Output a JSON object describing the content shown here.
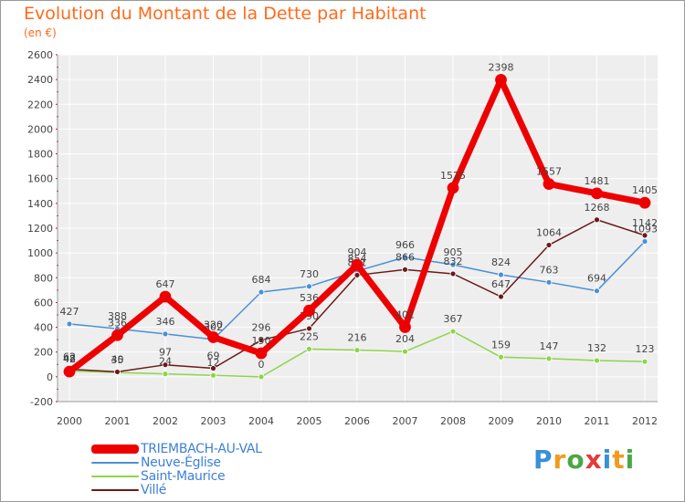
{
  "chart_data": {
    "type": "line",
    "title": "Evolution du Montant de la Dette par Habitant",
    "subtitle": "(en €)",
    "x": [
      "2000",
      "2001",
      "2002",
      "2003",
      "2004",
      "2005",
      "2006",
      "2007",
      "2008",
      "2009",
      "2010",
      "2011",
      "2012"
    ],
    "ylim": [
      -200,
      2600
    ],
    "yticks": [
      -200,
      0,
      200,
      400,
      600,
      800,
      1000,
      1200,
      1400,
      1600,
      1800,
      2000,
      2200,
      2400,
      2600
    ],
    "grid": true,
    "legend": "bottom-left",
    "series": [
      {
        "name": "Neuve-Église",
        "color": "#4a90d6",
        "width": 1.5,
        "labels": true,
        "values": [
          427,
          388,
          346,
          302,
          684,
          730,
          854,
          966,
          905,
          824,
          763,
          694,
          1093
        ]
      },
      {
        "name": "Saint-Maurice",
        "color": "#8ed44a",
        "width": 1.5,
        "labels": true,
        "values": [
          48,
          35,
          24,
          12,
          0,
          225,
          216,
          204,
          367,
          159,
          147,
          132,
          123
        ]
      },
      {
        "name": "Villé",
        "color": "#6b1a1a",
        "width": 1.5,
        "labels": true,
        "values": [
          62,
          40,
          97,
          69,
          296,
          390,
          821,
          866,
          832,
          647,
          1064,
          1268,
          1142
        ]
      },
      {
        "name": "TRIEMBACH-AU-VAL",
        "color": "#ee0000",
        "width": 7,
        "labels": true,
        "values": [
          42,
          336,
          647,
          320,
          190,
          536,
          904,
          401,
          1525,
          2398,
          1557,
          1481,
          1405
        ]
      }
    ]
  },
  "legend_order": [
    "TRIEMBACH-AU-VAL",
    "Neuve-Église",
    "Saint-Maurice",
    "Villé"
  ],
  "brand": {
    "text": "Proxiti"
  }
}
